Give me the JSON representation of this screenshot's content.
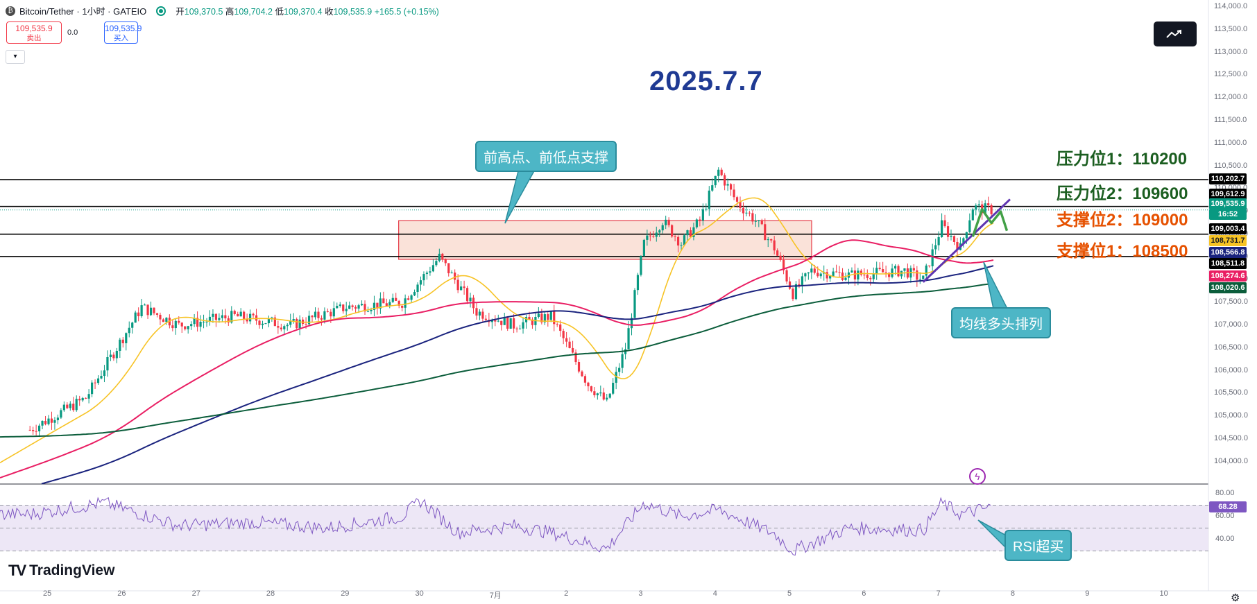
{
  "header": {
    "symbol_icon": "bitcoin-icon",
    "symbol": "Bitcoin/Tether · 1小时 · GATEIO",
    "ohlc": {
      "open_label": "开",
      "open": "109,370.5",
      "high_label": "高",
      "high": "109,704.2",
      "low_label": "低",
      "low": "109,370.4",
      "close_label": "收",
      "close": "109,535.9",
      "change": "+165.5 (+0.15%)"
    }
  },
  "trade": {
    "sell_price": "109,535.9",
    "sell_label": "卖出",
    "spread": "0.0",
    "buy_price": "109,535.9",
    "buy_label": "买入"
  },
  "annotations": {
    "date_title": "2025.7.7",
    "callout_box": "前高点、前低点支撑",
    "callout_ma": "均线多头排列",
    "callout_rsi": "RSI超买",
    "level_r1": "压力位1：110200",
    "level_r2": "压力位2：109600",
    "level_s2": "支撑位2：109000",
    "level_s1": "支撑位1：108500"
  },
  "branding": {
    "logo_text": "TradingView"
  },
  "price_tags": [
    {
      "text": "110,202.7",
      "bg": "#000000"
    },
    {
      "text": "109,612.9",
      "bg": "#000000"
    },
    {
      "text": "109,535.9",
      "bg": "#089981"
    },
    {
      "text": "16:52",
      "bg": "#089981"
    },
    {
      "text": "109,003.4",
      "bg": "#000000"
    },
    {
      "text": "108,731.7",
      "bg": "#f7c325"
    },
    {
      "text": "108,566.8",
      "bg": "#1a237e"
    },
    {
      "text": "108,511.8",
      "bg": "#000000"
    },
    {
      "text": "108,274.6",
      "bg": "#e91e63"
    },
    {
      "text": "108,020.6",
      "bg": "#0b5d3b"
    }
  ],
  "rsi_tag": {
    "text": "68.28",
    "bg": "#7e57c2"
  },
  "colors": {
    "up": "#089981",
    "down": "#f23645",
    "ma_fast": "#f7c325",
    "ma_mid": "#e91e63",
    "ma_slow": "#1a237e",
    "ma_long": "#0b5d3b",
    "rsi": "#7e57c2",
    "zone_fill": "#f8d3c5",
    "zone_border": "#e53945",
    "resistance_text": "#1b5e20",
    "support_text": "#e65100",
    "trend_line": "#5e35b1",
    "path_arrow": "#43a047"
  },
  "chart_data": {
    "type": "candlestick",
    "symbol": "Bitcoin/Tether",
    "interval": "1小时",
    "exchange": "GATEIO",
    "y_axis": {
      "range": [
        103700,
        114000
      ],
      "ticks": [
        "114,000.0",
        "113,500.0",
        "113,000.0",
        "112,500.0",
        "112,000.0",
        "111,500.0",
        "111,000.0",
        "110,500.0",
        "110,000.0",
        "109,500.0",
        "109,000.0",
        "108,500.0",
        "108,000.0",
        "107,500.0",
        "107,000.0",
        "106,500.0",
        "106,000.0",
        "105,500.0",
        "105,000.0",
        "104,500.0",
        "104,000.0"
      ]
    },
    "x_axis": {
      "labels": [
        "25",
        "26",
        "27",
        "28",
        "29",
        "30",
        "7月",
        "2",
        "3",
        "4",
        "5",
        "6",
        "7",
        "8",
        "9",
        "10"
      ]
    },
    "price_path_keypoints": [
      {
        "t": "06-24 18:00",
        "price": 104700
      },
      {
        "t": "06-25 12:00",
        "price": 105400
      },
      {
        "t": "06-26 06:00",
        "price": 107400
      },
      {
        "t": "06-26 18:00",
        "price": 107000
      },
      {
        "t": "06-27 12:00",
        "price": 107200
      },
      {
        "t": "06-28 06:00",
        "price": 107000
      },
      {
        "t": "06-29 00:00",
        "price": 107400
      },
      {
        "t": "06-29 18:00",
        "price": 107500
      },
      {
        "t": "06-30 06:00",
        "price": 108500
      },
      {
        "t": "06-30 18:00",
        "price": 107300
      },
      {
        "t": "07-01 06:00",
        "price": 107000
      },
      {
        "t": "07-01 18:00",
        "price": 107200
      },
      {
        "t": "07-02 06:00",
        "price": 105700
      },
      {
        "t": "07-02 12:00",
        "price": 105300
      },
      {
        "t": "07-02 18:00",
        "price": 106500
      },
      {
        "t": "07-03 00:00",
        "price": 108800
      },
      {
        "t": "07-03 06:00",
        "price": 109300
      },
      {
        "t": "07-03 12:00",
        "price": 108800
      },
      {
        "t": "07-03 18:00",
        "price": 109300
      },
      {
        "t": "07-04 00:00",
        "price": 110400
      },
      {
        "t": "07-04 06:00",
        "price": 109700
      },
      {
        "t": "07-04 12:00",
        "price": 109300
      },
      {
        "t": "07-04 18:00",
        "price": 108700
      },
      {
        "t": "07-05 00:00",
        "price": 107700
      },
      {
        "t": "07-05 06:00",
        "price": 108200
      },
      {
        "t": "07-05 18:00",
        "price": 108100
      },
      {
        "t": "07-06 12:00",
        "price": 108200
      },
      {
        "t": "07-06 18:00",
        "price": 108000
      },
      {
        "t": "07-07 00:00",
        "price": 109200
      },
      {
        "t": "07-07 06:00",
        "price": 108700
      },
      {
        "t": "07-07 10:00",
        "price": 109600
      },
      {
        "t": "07-07 16:00",
        "price": 109536
      }
    ],
    "moving_averages": [
      {
        "color": "#f7c325",
        "last": 108731.7
      },
      {
        "color": "#1a237e",
        "last": 108566.8
      },
      {
        "color": "#e91e63",
        "last": 108274.6
      },
      {
        "color": "#0b5d3b",
        "last": 108020.6
      }
    ],
    "horizontal_levels": [
      110202.7,
      109612.9,
      109003.4,
      108511.8
    ],
    "support_zone": {
      "from": "06-29 18:00",
      "to": "07-05 00:00",
      "low": 108450,
      "high": 109300
    },
    "rsi": {
      "last": 68.28,
      "ticks": [
        "80.00",
        "60.00",
        "40.00"
      ],
      "bands": [
        70,
        30
      ],
      "range": [
        22,
        82
      ],
      "keypoints": [
        {
          "t": "06-24 18:00",
          "value": 62
        },
        {
          "t": "06-25 18:00",
          "value": 72
        },
        {
          "t": "06-26 18:00",
          "value": 52
        },
        {
          "t": "06-27 18:00",
          "value": 55
        },
        {
          "t": "06-28 18:00",
          "value": 50
        },
        {
          "t": "06-29 18:00",
          "value": 60
        },
        {
          "t": "06-30 00:00",
          "value": 74
        },
        {
          "t": "06-30 12:00",
          "value": 46
        },
        {
          "t": "07-01 06:00",
          "value": 52
        },
        {
          "t": "07-01 18:00",
          "value": 46
        },
        {
          "t": "07-02 12:00",
          "value": 32
        },
        {
          "t": "07-03 00:00",
          "value": 72
        },
        {
          "t": "07-03 12:00",
          "value": 60
        },
        {
          "t": "07-04 00:00",
          "value": 66
        },
        {
          "t": "07-04 18:00",
          "value": 45
        },
        {
          "t": "07-05 00:00",
          "value": 30
        },
        {
          "t": "07-05 18:00",
          "value": 50
        },
        {
          "t": "07-06 18:00",
          "value": 48
        },
        {
          "t": "07-07 00:00",
          "value": 72
        },
        {
          "t": "07-07 06:00",
          "value": 62
        },
        {
          "t": "07-07 16:00",
          "value": 68.28
        }
      ]
    }
  }
}
